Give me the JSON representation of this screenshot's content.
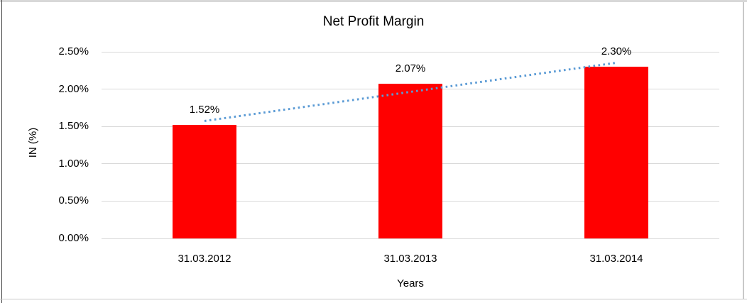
{
  "chart_data": {
    "type": "bar",
    "title": "Net Profit Margin",
    "xlabel": "Years",
    "ylabel": "IN (%)",
    "categories": [
      "31.03.2012",
      "31.03.2013",
      "31.03.2014"
    ],
    "values": [
      1.52,
      2.07,
      2.3
    ],
    "data_labels": [
      "1.52%",
      "2.07%",
      "2.30%"
    ],
    "y_ticks": [
      {
        "value": 0.0,
        "label": "0.00%"
      },
      {
        "value": 0.5,
        "label": "0.50%"
      },
      {
        "value": 1.0,
        "label": "1.00%"
      },
      {
        "value": 1.5,
        "label": "1.50%"
      },
      {
        "value": 2.0,
        "label": "2.00%"
      },
      {
        "value": 2.5,
        "label": "2.50%"
      }
    ],
    "ylim": [
      0,
      2.5
    ],
    "grid": true,
    "legend": "none",
    "bar_color": "#FF0000",
    "gridline_color": "#D9D9D9",
    "text_color": "#000000",
    "trendline": {
      "type": "linear",
      "style": "dotted",
      "color": "#5B9BD5"
    }
  }
}
